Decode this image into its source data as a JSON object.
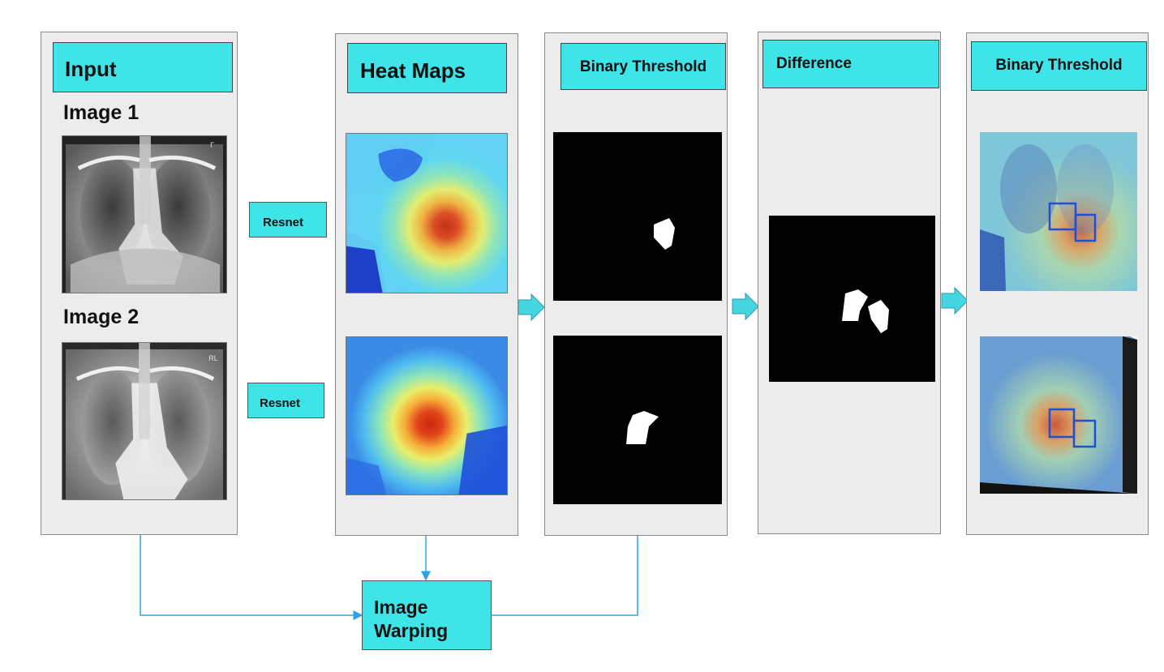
{
  "input_panel": {
    "title": "Input",
    "image1_label": "Image 1",
    "image2_label": "Image 2"
  },
  "resnet": {
    "top_label": "Resnet",
    "bottom_label": "Resnet"
  },
  "heatmap_panel": {
    "title": "Heat Maps"
  },
  "binary_panel": {
    "title": "Binary Threshold"
  },
  "difference_panel": {
    "title": "Difference"
  },
  "result_panel": {
    "title": "Binary Threshold"
  },
  "warping": {
    "label_line1": "Image",
    "label_line2": "Warping"
  },
  "colors": {
    "header_fill": "#3fe4e8",
    "panel_fill": "#ececec",
    "connector": "#2aa5e0",
    "arrow": "#45d6e2"
  }
}
